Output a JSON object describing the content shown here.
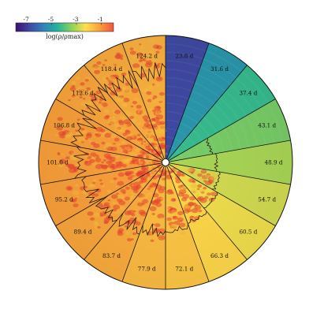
{
  "chart_data": {
    "type": "heatmap",
    "projection": "polar-wedges",
    "colormap": "plasma-viridis-like",
    "colorbar": {
      "label": "log(ρ/ρmax)",
      "ticks": [
        "-7",
        "-5",
        "-3",
        "-1"
      ],
      "tick_values": [
        -7,
        -5,
        -3,
        -1
      ],
      "range": [
        -7.9,
        0
      ],
      "placement": "top-left",
      "colors": [
        "#3b0f70",
        "#3f4aa3",
        "#2f84b8",
        "#23b59a",
        "#8cd25a",
        "#ffe04a",
        "#f9a13a",
        "#f4533e"
      ]
    },
    "wedges": [
      {
        "label": "23.8 d",
        "time": 23.8,
        "value": -6.8
      },
      {
        "label": "31.6 d",
        "time": 31.6,
        "value": -5.2
      },
      {
        "label": "37.4 d",
        "time": 37.4,
        "value": -4.3
      },
      {
        "label": "43.1 d",
        "time": 43.1,
        "value": -3.6
      },
      {
        "label": "48.9 d",
        "time": 48.9,
        "value": -3.1
      },
      {
        "label": "54.7 d",
        "time": 54.7,
        "value": -2.7
      },
      {
        "label": "60.5 d",
        "time": 60.5,
        "value": -2.4
      },
      {
        "label": "66.3 d",
        "time": 66.3,
        "value": -2.1
      },
      {
        "label": "72.1 d",
        "time": 72.1,
        "value": -1.8
      },
      {
        "label": "77.9 d",
        "time": 77.9,
        "value": -1.6
      },
      {
        "label": "83.7 d",
        "time": 83.7,
        "value": -1.3
      },
      {
        "label": "89.4 d",
        "time": 89.4,
        "value": -1.2
      },
      {
        "label": "95.2 d",
        "time": 95.2,
        "value": -1.1
      },
      {
        "label": "101.0 d",
        "time": 101.0,
        "value": -1.1
      },
      {
        "label": "106.8 d",
        "time": 106.8,
        "value": -1.1
      },
      {
        "label": "112.6 d",
        "time": 112.6,
        "value": -1.2
      },
      {
        "label": "118.4 d",
        "time": 118.4,
        "value": -1.3
      },
      {
        "label": "124.2 d",
        "time": 124.2,
        "value": -1.4
      }
    ]
  }
}
